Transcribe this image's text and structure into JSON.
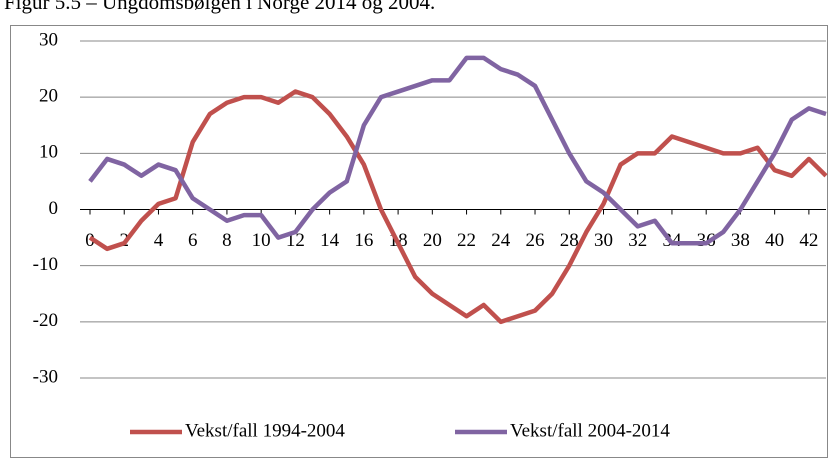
{
  "chart_data": {
    "type": "line",
    "title": "Figur 5.5 – Ungdomsbølgen i Norge 2014 og 2004.",
    "x": [
      0,
      1,
      2,
      3,
      4,
      5,
      6,
      7,
      8,
      9,
      10,
      11,
      12,
      13,
      14,
      15,
      16,
      17,
      18,
      19,
      20,
      21,
      22,
      23,
      24,
      25,
      26,
      27,
      28,
      29,
      30,
      31,
      32,
      33,
      34,
      35,
      36,
      37,
      38,
      39,
      40,
      41,
      42,
      43
    ],
    "xlim": [
      0,
      43
    ],
    "xticks": [
      0,
      2,
      4,
      6,
      8,
      10,
      12,
      14,
      16,
      18,
      20,
      22,
      24,
      26,
      28,
      30,
      32,
      34,
      36,
      38,
      40,
      42
    ],
    "ylim": [
      -30,
      30
    ],
    "yticks": [
      -30,
      -20,
      -10,
      0,
      10,
      20,
      30
    ],
    "grid": true,
    "legend": "bottom",
    "series": [
      {
        "name": "Vekst/fall 1994-2004",
        "color": "#c0504d",
        "values": [
          -5,
          -7,
          -6,
          -2,
          1,
          2,
          12,
          17,
          19,
          20,
          20,
          19,
          21,
          20,
          17,
          13,
          8,
          0,
          -6,
          -12,
          -15,
          -17,
          -19,
          -17,
          -20,
          -19,
          -18,
          -15,
          -10,
          -4,
          1,
          8,
          10,
          10,
          13,
          12,
          11,
          10,
          10,
          11,
          7,
          6,
          9,
          6
        ]
      },
      {
        "name": "Vekst/fall 2004-2014",
        "color": "#8064a2",
        "values": [
          5,
          9,
          8,
          6,
          8,
          7,
          2,
          0,
          -2,
          -1,
          -1,
          -5,
          -4,
          0,
          3,
          5,
          15,
          20,
          21,
          22,
          23,
          23,
          27,
          27,
          25,
          24,
          22,
          16,
          10,
          5,
          3,
          0,
          -3,
          -2,
          -6,
          -6,
          -6,
          -4,
          0,
          5,
          10,
          16,
          18,
          17
        ]
      }
    ]
  }
}
